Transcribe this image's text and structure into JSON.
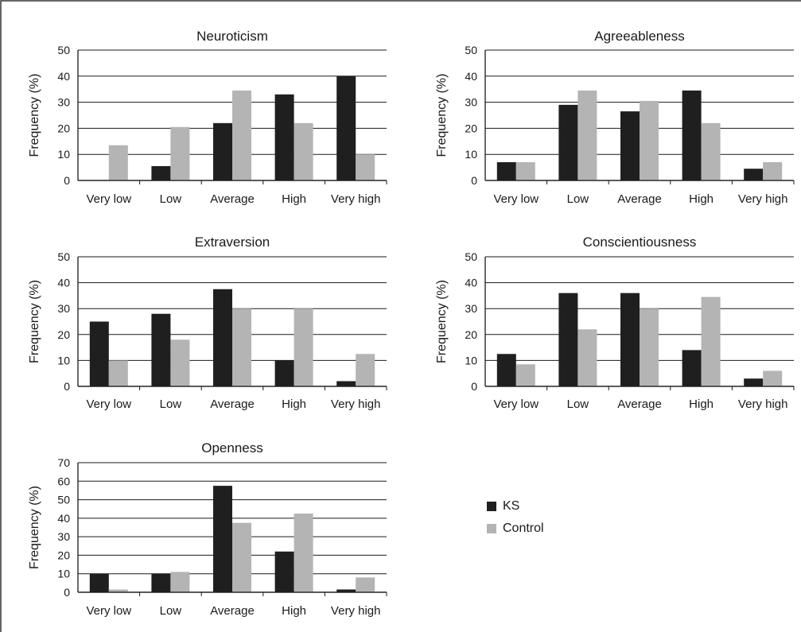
{
  "colors": {
    "ks": "#1f1f1f",
    "control": "#b4b4b4",
    "border": "#333333"
  },
  "legend": [
    {
      "label": "KS",
      "color": "#1f1f1f"
    },
    {
      "label": "Control",
      "color": "#b4b4b4"
    }
  ],
  "chart_data": [
    {
      "type": "bar",
      "title": "Neuroticism",
      "ylabel": "Frequency (%)",
      "ylim": [
        0,
        50
      ],
      "yticks": [
        0,
        10,
        20,
        30,
        40,
        50
      ],
      "categories": [
        "Very low",
        "Low",
        "Average",
        "High",
        "Very high"
      ],
      "series": [
        {
          "name": "KS",
          "values": [
            0,
            5.5,
            22,
            33,
            40
          ]
        },
        {
          "name": "Control",
          "values": [
            13.5,
            20.5,
            34.5,
            22,
            10
          ]
        }
      ]
    },
    {
      "type": "bar",
      "title": "Agreeableness",
      "ylabel": "Frequency (%)",
      "ylim": [
        0,
        50
      ],
      "yticks": [
        0,
        10,
        20,
        30,
        40,
        50
      ],
      "categories": [
        "Very low",
        "Low",
        "Average",
        "High",
        "Very high"
      ],
      "series": [
        {
          "name": "KS",
          "values": [
            7,
            29,
            26.5,
            34.5,
            4.5
          ]
        },
        {
          "name": "Control",
          "values": [
            7,
            34.5,
            30.5,
            22,
            7
          ]
        }
      ]
    },
    {
      "type": "bar",
      "title": "Extraversion",
      "ylabel": "Frequency (%)",
      "ylim": [
        0,
        50
      ],
      "yticks": [
        0,
        10,
        20,
        30,
        40,
        50
      ],
      "categories": [
        "Very low",
        "Low",
        "Average",
        "High",
        "Very high"
      ],
      "series": [
        {
          "name": "KS",
          "values": [
            25,
            28,
            37.5,
            10,
            2
          ]
        },
        {
          "name": "Control",
          "values": [
            10,
            18,
            30,
            30,
            12.5
          ]
        }
      ]
    },
    {
      "type": "bar",
      "title": "Conscientiousness",
      "ylabel": "Frequency (%)",
      "ylim": [
        0,
        50
      ],
      "yticks": [
        0,
        10,
        20,
        30,
        40,
        50
      ],
      "categories": [
        "Very low",
        "Low",
        "Average",
        "High",
        "Very high"
      ],
      "series": [
        {
          "name": "KS",
          "values": [
            12.5,
            36,
            36,
            14,
            3
          ]
        },
        {
          "name": "Control",
          "values": [
            8.5,
            22,
            30,
            34.5,
            6
          ]
        }
      ]
    },
    {
      "type": "bar",
      "title": "Openness",
      "ylabel": "Frequency (%)",
      "ylim": [
        0,
        70
      ],
      "yticks": [
        0,
        10,
        20,
        30,
        40,
        50,
        60,
        70
      ],
      "categories": [
        "Very low",
        "Low",
        "Average",
        "High",
        "Very high"
      ],
      "series": [
        {
          "name": "KS",
          "values": [
            10,
            10,
            57.5,
            22,
            1.5
          ]
        },
        {
          "name": "Control",
          "values": [
            1.5,
            11,
            37.5,
            42.5,
            8
          ]
        }
      ]
    }
  ]
}
